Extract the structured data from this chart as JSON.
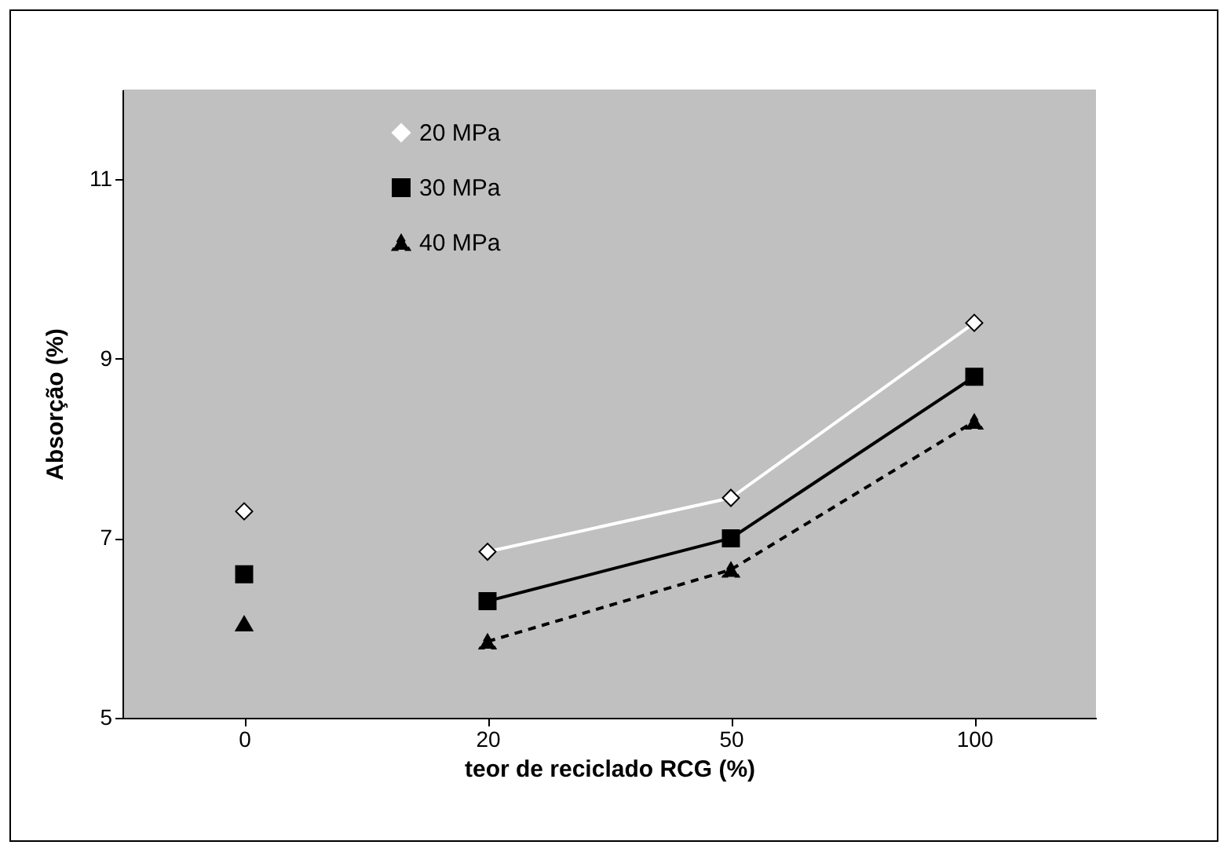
{
  "chart_data": {
    "type": "line",
    "xlabel": "teor de reciclado RCG (%)",
    "ylabel": "Absorção (%)",
    "categories": [
      "0",
      "20",
      "50",
      "100"
    ],
    "ylim": [
      5,
      12
    ],
    "yticks": [
      5,
      7,
      9,
      11
    ],
    "grid": false,
    "legend": "top",
    "series": [
      {
        "name": "20 MPa",
        "color": "#ffffff",
        "marker": "diamond",
        "line_style": "solid",
        "values": [
          null,
          6.85,
          7.45,
          9.4
        ]
      },
      {
        "name": "30 MPa",
        "color": "#000000",
        "marker": "square",
        "line_style": "solid",
        "values": [
          null,
          6.3,
          7.0,
          8.8
        ]
      },
      {
        "name": "40 MPa",
        "color": "#000000",
        "marker": "triangle",
        "line_style": "dashed",
        "values": [
          null,
          5.85,
          6.65,
          8.3
        ]
      },
      {
        "type": "scatter",
        "color": "#ffffff",
        "marker": "diamond",
        "values": [
          7.3,
          null,
          null,
          null
        ]
      },
      {
        "type": "scatter",
        "color": "#000000",
        "marker": "square",
        "values": [
          6.6,
          null,
          null,
          null
        ]
      },
      {
        "type": "scatter",
        "color": "#000000",
        "marker": "triangle",
        "values": [
          6.05,
          null,
          null,
          null
        ]
      }
    ]
  }
}
